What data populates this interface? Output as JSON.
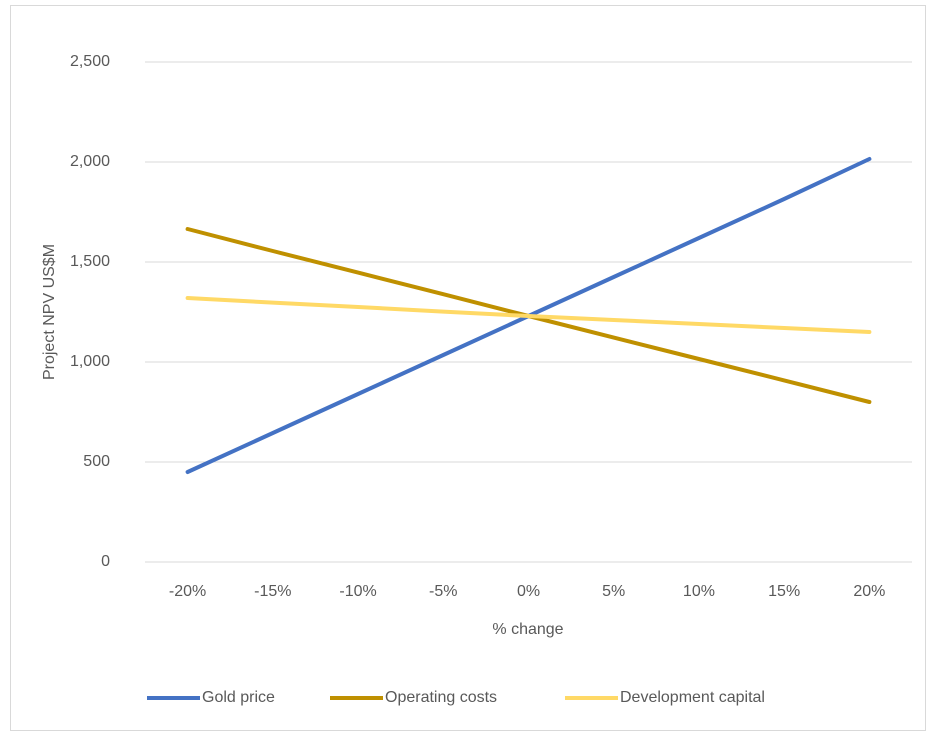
{
  "chart_data": {
    "type": "line",
    "x_label": "% change",
    "y_label": "Project  NPV US$M",
    "categories": [
      "-20%",
      "-15%",
      "-10%",
      "-5%",
      "0%",
      "5%",
      "10%",
      "15%",
      "20%"
    ],
    "series": [
      {
        "name": "Gold price",
        "color": "#4472c4",
        "values": [
          450,
          645,
          840,
          1035,
          1230,
          1425,
          1620,
          1815,
          2015
        ]
      },
      {
        "name": "Operating costs",
        "color": "#bf9000",
        "values": [
          1665,
          1555,
          1447,
          1339,
          1230,
          1122,
          1015,
          908,
          800
        ]
      },
      {
        "name": "Development capital",
        "color": "#ffd966",
        "values": [
          1320,
          1297,
          1275,
          1252,
          1230,
          1210,
          1190,
          1170,
          1150
        ]
      }
    ],
    "ylim": [
      0,
      2500
    ],
    "yticks": [
      0,
      500,
      {
        "value": 1000,
        "label": "1,000"
      },
      {
        "value": 1500,
        "label": "1,500"
      },
      {
        "value": 2000,
        "label": "2,000"
      },
      {
        "value": 2500,
        "label": "2,500"
      }
    ],
    "grid": true,
    "legend": "bottom"
  }
}
